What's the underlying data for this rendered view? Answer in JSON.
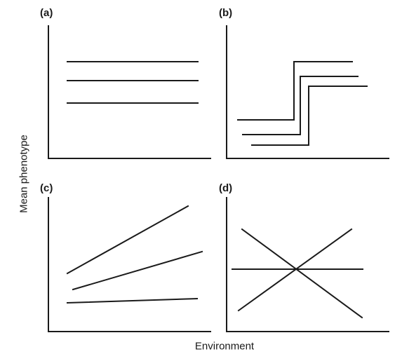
{
  "figure": {
    "y_axis_label": "Mean phenotype",
    "x_axis_label": "Environment",
    "line_color": "#1a1a1a"
  },
  "panels": [
    {
      "id": "a",
      "label": "(a)"
    },
    {
      "id": "b",
      "label": "(b)"
    },
    {
      "id": "c",
      "label": "(c)"
    },
    {
      "id": "d",
      "label": "(d)"
    }
  ]
}
